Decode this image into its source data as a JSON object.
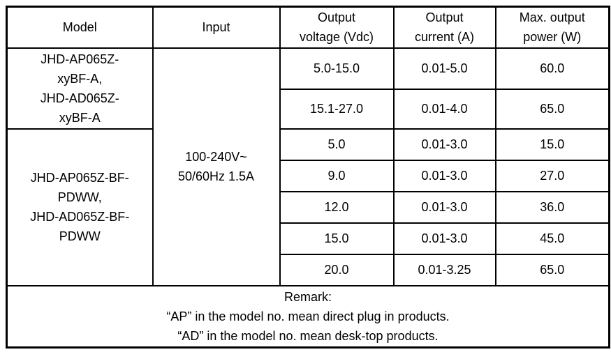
{
  "page": {
    "background_color": "#ffffff",
    "border_color": "#000000",
    "text_color": "#000000"
  },
  "table": {
    "headers": {
      "model": "Model",
      "input": "Input",
      "output_voltage": "Output\nvoltage (Vdc)",
      "output_current": "Output\ncurrent (A)",
      "max_output_power": "Max. output\npower (W)"
    },
    "input_value": "100-240V~\n50/60Hz 1.5A",
    "model_groups": [
      "JHD-AP065Z-\nxyBF-A,\nJHD-AD065Z-\nxyBF-A",
      "JHD-AP065Z-BF-\nPDWW,\nJHD-AD065Z-BF-\nPDWW"
    ],
    "rows": [
      {
        "voltage": "5.0-15.0",
        "current": "0.01-5.0",
        "power": "60.0"
      },
      {
        "voltage": "15.1-27.0",
        "current": "0.01-4.0",
        "power": "65.0"
      },
      {
        "voltage": "5.0",
        "current": "0.01-3.0",
        "power": "15.0"
      },
      {
        "voltage": "9.0",
        "current": "0.01-3.0",
        "power": "27.0"
      },
      {
        "voltage": "12.0",
        "current": "0.01-3.0",
        "power": "36.0"
      },
      {
        "voltage": "15.0",
        "current": "0.01-3.0",
        "power": "45.0"
      },
      {
        "voltage": "20.0",
        "current": "0.01-3.25",
        "power": "65.0"
      }
    ],
    "remark": "Remark:\n“AP” in the model no. mean direct plug in products.\n“AD” in the model no. mean desk-top products."
  }
}
